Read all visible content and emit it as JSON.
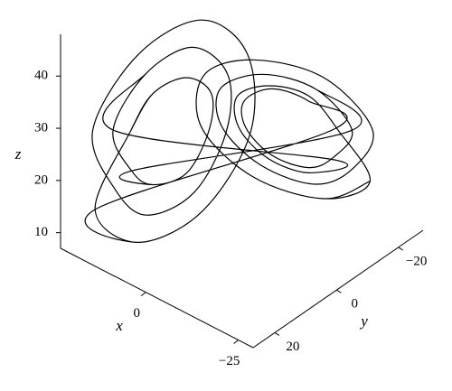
{
  "chart_data": {
    "type": "line3d",
    "xlabel": "x",
    "ylabel": "y",
    "zlabel": "z",
    "xlim": [
      -29,
      23
    ],
    "ylim": [
      -28,
      27
    ],
    "zlim": [
      7,
      48
    ],
    "xticks": [
      0,
      {
        "value": -25,
        "label": "−25"
      }
    ],
    "yticks": [
      {
        "value": -20,
        "label": "−20"
      },
      0,
      20
    ],
    "zticks": [
      10,
      20,
      30,
      40
    ],
    "series": [
      {
        "color": "#000000",
        "x": [
          15,
          13,
          9,
          4,
          3,
          4,
          9,
          13,
          18,
          15,
          9,
          2,
          0,
          2,
          9,
          15,
          21,
          17,
          9,
          0,
          -4,
          0,
          9,
          17,
          -16,
          -14,
          -9,
          -4,
          -2,
          -4,
          -9,
          -14,
          -19,
          -16,
          -9,
          -1,
          2,
          -1,
          -9,
          -16,
          -22,
          -18,
          -9,
          1,
          5,
          1,
          -9,
          -18,
          -17,
          -14,
          -9,
          -3,
          -1,
          -3,
          -9,
          -14,
          18,
          15,
          9,
          2,
          0,
          2,
          9,
          15,
          21,
          17,
          9,
          0,
          -4,
          0,
          9,
          17,
          15,
          13,
          9,
          4,
          3,
          4,
          9,
          13,
          -19,
          -16,
          -9,
          -1,
          2,
          -1,
          -9,
          -16,
          -22,
          -18,
          -9,
          1,
          5,
          1,
          -9,
          -18
        ],
        "y": [
          14,
          9,
          3,
          1,
          3,
          9,
          14,
          16,
          16,
          9,
          1,
          -2,
          1,
          9,
          16,
          19,
          19,
          9,
          -2,
          -6,
          -2,
          9,
          19,
          23,
          -15,
          -9,
          -3,
          0,
          -3,
          -9,
          -15,
          -17,
          -17,
          -9,
          0,
          4,
          0,
          -9,
          -17,
          -21,
          -20,
          -9,
          3,
          7,
          3,
          -9,
          -20,
          -24,
          -15,
          -9,
          -2,
          1,
          -2,
          -9,
          -15,
          -18,
          16,
          9,
          1,
          -2,
          1,
          9,
          16,
          19,
          19,
          9,
          -2,
          -6,
          -2,
          9,
          19,
          23,
          14,
          9,
          3,
          1,
          3,
          9,
          14,
          16,
          -17,
          -9,
          0,
          4,
          0,
          -9,
          -17,
          -21,
          -20,
          -9,
          3,
          7,
          3,
          -9,
          -20,
          -24
        ],
        "z": [
          27,
          33,
          35,
          33,
          27,
          21,
          19,
          21,
          27,
          36,
          40,
          36,
          27,
          18,
          14,
          18,
          27,
          39,
          44,
          39,
          27,
          15,
          10,
          15,
          27,
          34,
          37,
          34,
          27,
          20,
          17,
          20,
          27,
          37,
          41,
          37,
          27,
          17,
          13,
          17,
          27,
          40,
          45,
          40,
          27,
          14,
          9,
          14,
          27,
          35,
          38,
          35,
          27,
          19,
          16,
          19,
          27,
          36,
          40,
          36,
          27,
          18,
          14,
          18,
          27,
          39,
          44,
          39,
          27,
          15,
          10,
          15,
          27,
          33,
          35,
          33,
          27,
          21,
          19,
          21,
          27,
          37,
          41,
          37,
          27,
          17,
          13,
          17,
          27,
          40,
          45,
          40,
          27,
          14,
          9,
          14
        ]
      }
    ]
  }
}
